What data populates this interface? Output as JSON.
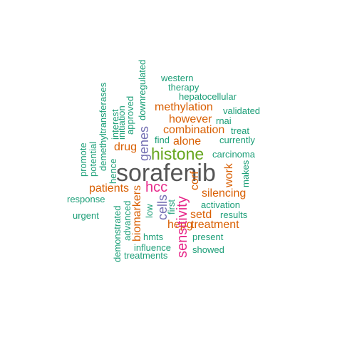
{
  "colors": {
    "gray": "#555555",
    "green": "#1b9e77",
    "orange": "#d95f02",
    "purple": "#7570b3",
    "magenta": "#e7298a",
    "lime": "#66a61e"
  },
  "words": [
    {
      "text": "sorafenib",
      "color": "gray"
    },
    {
      "text": "histone",
      "color": "lime"
    },
    {
      "text": "hcc",
      "color": "magenta"
    },
    {
      "text": "sensitivity",
      "color": "magenta"
    },
    {
      "text": "genes",
      "color": "purple"
    },
    {
      "text": "cells",
      "color": "purple"
    },
    {
      "text": "biomarkers",
      "color": "orange"
    },
    {
      "text": "work",
      "color": "orange"
    },
    {
      "text": "corf",
      "color": "orange"
    },
    {
      "text": "methylation",
      "color": "orange"
    },
    {
      "text": "however",
      "color": "orange"
    },
    {
      "text": "combination",
      "color": "orange"
    },
    {
      "text": "alone",
      "color": "orange"
    },
    {
      "text": "drug",
      "color": "orange"
    },
    {
      "text": "patients",
      "color": "orange"
    },
    {
      "text": "silencing",
      "color": "orange"
    },
    {
      "text": "setd",
      "color": "orange"
    },
    {
      "text": "treatment",
      "color": "orange"
    },
    {
      "text": "hepg",
      "color": "orange"
    },
    {
      "text": "western",
      "color": "green"
    },
    {
      "text": "therapy",
      "color": "green"
    },
    {
      "text": "hepatocellular",
      "color": "green"
    },
    {
      "text": "validated",
      "color": "green"
    },
    {
      "text": "rnai",
      "color": "green"
    },
    {
      "text": "treat",
      "color": "green"
    },
    {
      "text": "currently",
      "color": "green"
    },
    {
      "text": "find",
      "color": "green"
    },
    {
      "text": "carcinoma",
      "color": "green"
    },
    {
      "text": "makes",
      "color": "green"
    },
    {
      "text": "activation",
      "color": "green"
    },
    {
      "text": "results",
      "color": "green"
    },
    {
      "text": "present",
      "color": "green"
    },
    {
      "text": "showed",
      "color": "green"
    },
    {
      "text": "influence",
      "color": "green"
    },
    {
      "text": "treatments",
      "color": "green"
    },
    {
      "text": "hmts",
      "color": "green"
    },
    {
      "text": "low",
      "color": "green"
    },
    {
      "text": "first",
      "color": "green"
    },
    {
      "text": "advanced",
      "color": "green"
    },
    {
      "text": "demonstrated",
      "color": "green"
    },
    {
      "text": "response",
      "color": "green"
    },
    {
      "text": "urgent",
      "color": "green"
    },
    {
      "text": "promote",
      "color": "green"
    },
    {
      "text": "potential",
      "color": "green"
    },
    {
      "text": "demethyltransferases",
      "color": "green"
    },
    {
      "text": "hence",
      "color": "green"
    },
    {
      "text": "interest",
      "color": "green"
    },
    {
      "text": "initiation",
      "color": "green"
    },
    {
      "text": "approved",
      "color": "green"
    },
    {
      "text": "downregulated",
      "color": "green"
    }
  ]
}
